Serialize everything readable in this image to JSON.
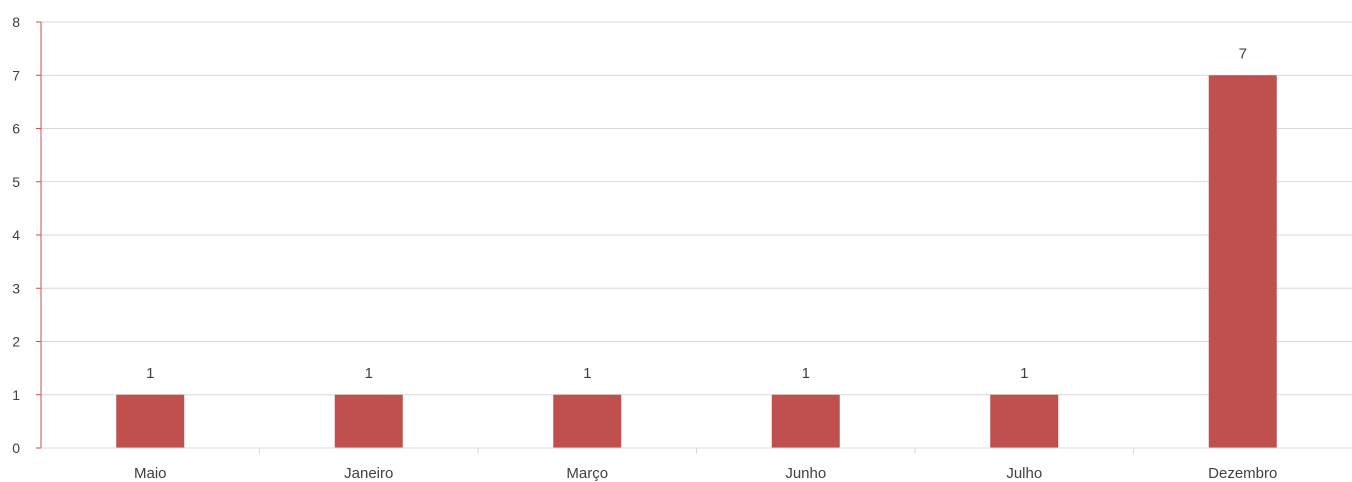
{
  "chart_data": {
    "type": "bar",
    "categories": [
      "Maio",
      "Janeiro",
      "Março",
      "Junho",
      "Julho",
      "Dezembro"
    ],
    "values": [
      1,
      1,
      1,
      1,
      1,
      7
    ],
    "ylim": [
      0,
      8
    ],
    "yticks": [
      "0",
      "1",
      "2",
      "3",
      "4",
      "5",
      "6",
      "7",
      "8"
    ],
    "data_labels": [
      "1",
      "1",
      "1",
      "1",
      "1",
      "7"
    ],
    "grid": true,
    "legend": "none",
    "colors": {
      "bar": "#c0504d",
      "axis": "#c0504d",
      "grid": "#d9d9d9",
      "text": "#404040"
    }
  }
}
